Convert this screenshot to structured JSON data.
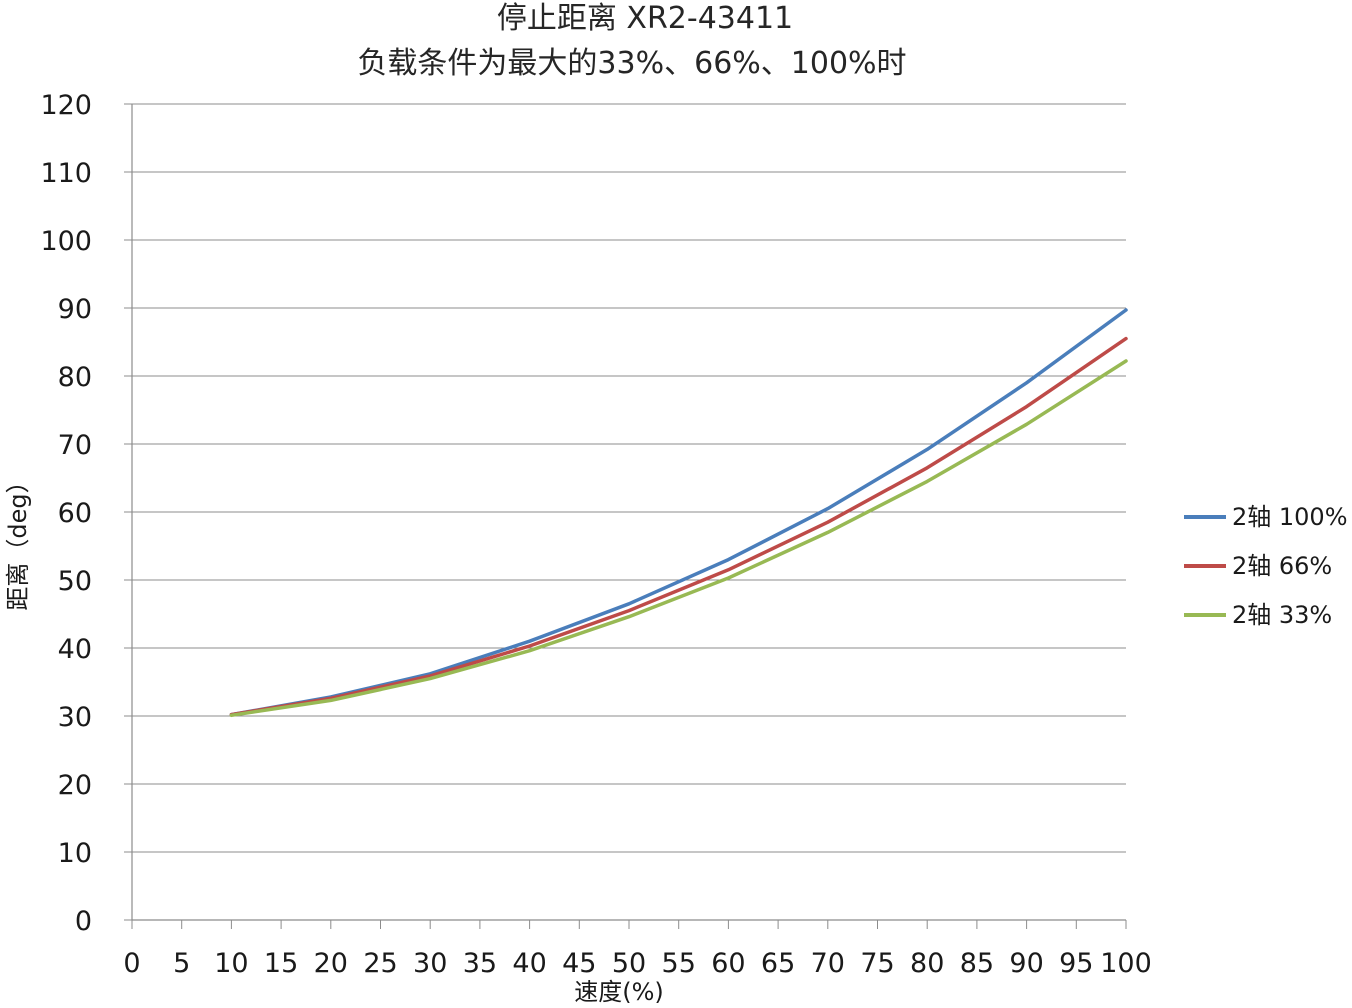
{
  "chart_data": {
    "type": "line",
    "title_line1": "停止距离 XR2-43411",
    "title_line2": "负载条件为最大的33%、66%、100%时",
    "xlabel": "速度(%)",
    "ylabel": "距离（deg）",
    "xlim": [
      0,
      100
    ],
    "ylim": [
      0,
      120
    ],
    "x_ticks": [
      0,
      5,
      10,
      15,
      20,
      25,
      30,
      35,
      40,
      45,
      50,
      55,
      60,
      65,
      70,
      75,
      80,
      85,
      90,
      95,
      100
    ],
    "y_ticks": [
      0,
      10,
      20,
      30,
      40,
      50,
      60,
      70,
      80,
      90,
      100,
      110,
      120
    ],
    "grid": "horizontal",
    "legend_position": "right",
    "x": [
      10,
      20,
      30,
      40,
      50,
      60,
      70,
      80,
      90,
      100
    ],
    "series": [
      {
        "name": "2轴  100%",
        "color": "#4a7ebb",
        "values": [
          30.2,
          32.8,
          36.2,
          41.0,
          46.5,
          53.0,
          60.5,
          69.2,
          79.0,
          89.7
        ]
      },
      {
        "name": "2轴  66%",
        "color": "#be4b48",
        "values": [
          30.2,
          32.6,
          35.9,
          40.3,
          45.5,
          51.5,
          58.5,
          66.5,
          75.5,
          85.5
        ]
      },
      {
        "name": "2轴  33%",
        "color": "#98b954",
        "values": [
          30.1,
          32.3,
          35.5,
          39.6,
          44.6,
          50.3,
          57.0,
          64.5,
          72.9,
          82.2
        ]
      }
    ]
  }
}
